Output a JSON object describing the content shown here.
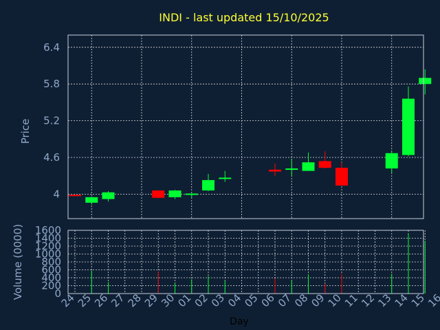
{
  "chart_data": {
    "type": "candlestick",
    "title": "INDI - last updated 15/10/2025",
    "xlabel": "Day",
    "ylabel_price": "Price",
    "ylabel_volume": "Volume (0000)",
    "x_ticks": [
      "24",
      "25",
      "26",
      "27",
      "28",
      "29",
      "30",
      "01",
      "02",
      "03",
      "04",
      "05",
      "06",
      "07",
      "08",
      "09",
      "10",
      "11",
      "12",
      "13",
      "14",
      "15",
      "16"
    ],
    "price_ticks": [
      "4",
      "4.6",
      "5.2",
      "5.8",
      "6.4"
    ],
    "price_ylim": [
      3.6,
      6.6
    ],
    "volume_ticks": [
      "0",
      "200",
      "400",
      "600",
      "800",
      "1000",
      "1200",
      "1400",
      "1600"
    ],
    "volume_ylim": [
      0,
      1600
    ],
    "grid": true,
    "up_color": "#00ff33",
    "down_color": "#ff0000",
    "candles": [
      {
        "day": "24",
        "open": 3.99,
        "close": 3.98,
        "high": 3.99,
        "low": 3.97,
        "volume": 0
      },
      {
        "day": "25",
        "open": 3.86,
        "close": 3.95,
        "high": 3.96,
        "low": 3.83,
        "volume": 580
      },
      {
        "day": "26",
        "open": 3.92,
        "close": 4.03,
        "high": 4.05,
        "low": 3.88,
        "volume": 290
      },
      {
        "day": "29",
        "open": 4.06,
        "close": 3.94,
        "high": 4.06,
        "low": 3.94,
        "volume": 560
      },
      {
        "day": "30",
        "open": 3.95,
        "close": 4.06,
        "high": 4.07,
        "low": 3.92,
        "volume": 260
      },
      {
        "day": "01",
        "open": 3.99,
        "close": 4.01,
        "high": 4.01,
        "low": 3.94,
        "volume": 360
      },
      {
        "day": "02",
        "open": 4.06,
        "close": 4.23,
        "high": 4.33,
        "low": 4.05,
        "volume": 440
      },
      {
        "day": "03",
        "open": 4.26,
        "close": 4.27,
        "high": 4.38,
        "low": 4.2,
        "volume": 320
      },
      {
        "day": "06",
        "open": 4.4,
        "close": 4.37,
        "high": 4.5,
        "low": 4.3,
        "volume": 380
      },
      {
        "day": "07",
        "open": 4.4,
        "close": 4.42,
        "high": 4.58,
        "low": 4.29,
        "volume": 330
      },
      {
        "day": "08",
        "open": 4.38,
        "close": 4.52,
        "high": 4.68,
        "low": 4.38,
        "volume": 490
      },
      {
        "day": "09",
        "open": 4.54,
        "close": 4.43,
        "high": 4.7,
        "low": 4.42,
        "volume": 250
      },
      {
        "day": "10",
        "open": 4.43,
        "close": 4.14,
        "high": 4.52,
        "low": 4.14,
        "volume": 500
      },
      {
        "day": "13",
        "open": 4.42,
        "close": 4.67,
        "high": 4.7,
        "low": 4.35,
        "volume": 500
      },
      {
        "day": "14",
        "open": 4.64,
        "close": 5.56,
        "high": 5.76,
        "low": 4.62,
        "volume": 1520
      },
      {
        "day": "15",
        "open": 5.8,
        "close": 5.9,
        "high": 6.04,
        "low": 5.63,
        "volume": 1330
      }
    ]
  }
}
